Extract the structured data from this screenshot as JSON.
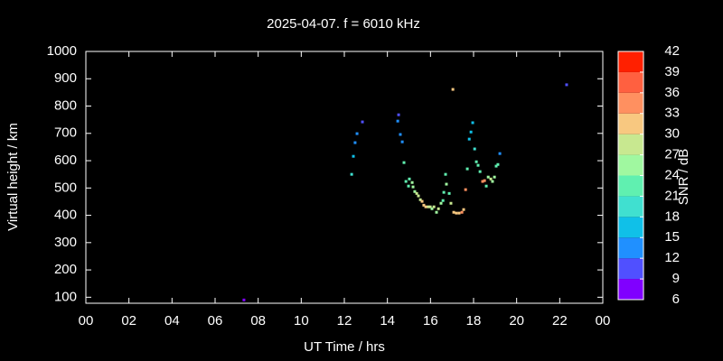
{
  "chart_data": {
    "type": "scatter",
    "title": "2025-04-07. f = 6010 kHz",
    "x_label": "UT Time / hrs",
    "y_label": "Virtual height / km",
    "x": [
      7.34,
      12.34,
      12.42,
      12.5,
      12.59,
      12.84,
      14.48,
      14.52,
      14.6,
      14.69,
      14.77,
      14.86,
      14.98,
      15.02,
      15.15,
      15.19,
      15.27,
      15.36,
      15.44,
      15.53,
      15.61,
      15.69,
      15.78,
      15.9,
      15.99,
      16.07,
      16.16,
      16.28,
      16.37,
      16.49,
      16.58,
      16.62,
      16.7,
      16.74,
      16.87,
      16.95,
      17.04,
      17.08,
      17.2,
      17.33,
      17.46,
      17.54,
      17.63,
      17.71,
      17.8,
      17.88,
      17.96,
      18.05,
      18.13,
      18.21,
      18.3,
      18.42,
      18.51,
      18.59,
      18.68,
      18.8,
      18.88,
      18.97,
      19.05,
      19.13,
      19.22,
      22.32
    ],
    "y": [
      90,
      550,
      616,
      666,
      699,
      742,
      745,
      768,
      696,
      669,
      593,
      524,
      507,
      533,
      520,
      504,
      487,
      480,
      471,
      457,
      451,
      437,
      431,
      431,
      431,
      424,
      431,
      411,
      424,
      444,
      454,
      484,
      550,
      514,
      480,
      444,
      861,
      411,
      408,
      408,
      411,
      421,
      494,
      570,
      679,
      705,
      739,
      643,
      596,
      583,
      560,
      524,
      527,
      507,
      540,
      533,
      524,
      540,
      580,
      586,
      626,
      878
    ],
    "snr": [
      8,
      19,
      15,
      14,
      12,
      11,
      12,
      11,
      12,
      14,
      22,
      23,
      23,
      22,
      24,
      25,
      26,
      27,
      28,
      29,
      31,
      32,
      31,
      29,
      28,
      26,
      27,
      26,
      27,
      25,
      23,
      22,
      22,
      24,
      23,
      29,
      30,
      32,
      31,
      32,
      33,
      32,
      34,
      23,
      17,
      15,
      16,
      20,
      22,
      21,
      23,
      34,
      33,
      22,
      25,
      27,
      25,
      24,
      23,
      21,
      14,
      10
    ],
    "xlim": [
      0,
      24
    ],
    "xticks": [
      {
        "value": 0,
        "label": "00"
      },
      {
        "value": 2,
        "label": "02"
      },
      {
        "value": 4,
        "label": "04"
      },
      {
        "value": 6,
        "label": "06"
      },
      {
        "value": 8,
        "label": "08"
      },
      10,
      12,
      14,
      16,
      18,
      20,
      22,
      {
        "value": 24,
        "label": "00"
      }
    ],
    "ylim": [
      78,
      1000
    ],
    "yticks": [
      100,
      200,
      300,
      400,
      500,
      600,
      700,
      800,
      900,
      1000
    ],
    "colorbar": {
      "label": "SNR / dB",
      "lim": [
        6,
        42
      ],
      "ticks": [
        6,
        9,
        12,
        15,
        18,
        21,
        24,
        27,
        30,
        33,
        36,
        39,
        42
      ],
      "colors": [
        "#8000ff",
        "#5050ff",
        "#2090ff",
        "#10c0e8",
        "#40e0d0",
        "#60f0b0",
        "#a0f8a0",
        "#c8e890",
        "#f8c880",
        "#ff9060",
        "#ff6040",
        "#ff2000"
      ]
    }
  }
}
